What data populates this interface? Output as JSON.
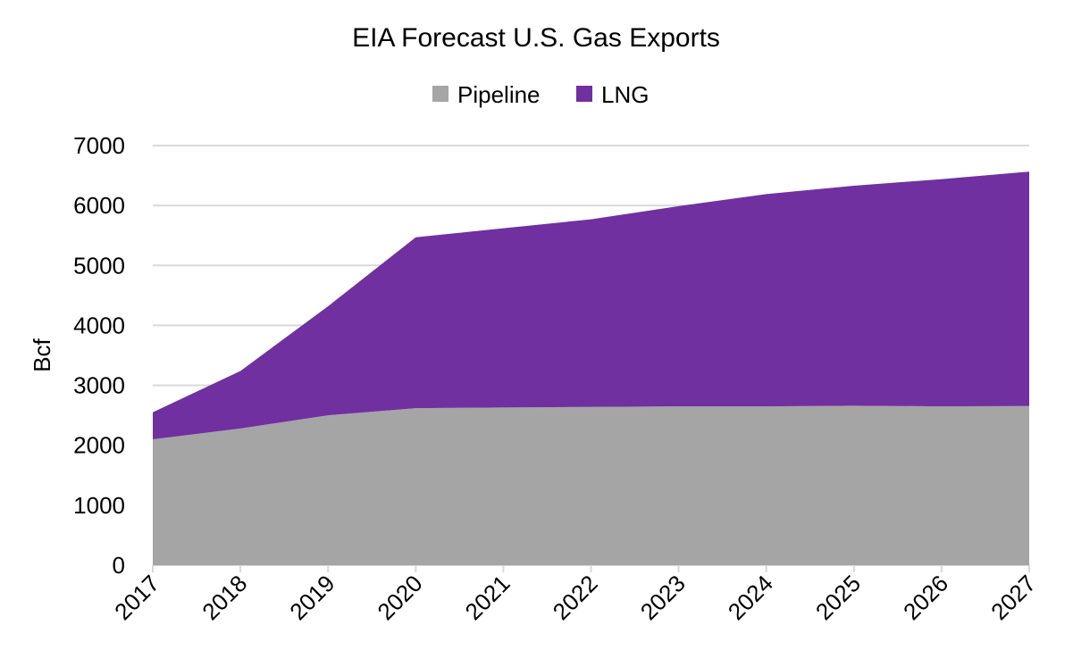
{
  "chart_data": {
    "type": "area",
    "stacked": true,
    "title": "EIA Forecast U.S. Gas Exports",
    "xlabel": "",
    "ylabel": "Bcf",
    "categories": [
      "2017",
      "2018",
      "2019",
      "2020",
      "2021",
      "2022",
      "2023",
      "2024",
      "2025",
      "2026",
      "2027"
    ],
    "series": [
      {
        "name": "Pipeline",
        "color": "#A5A5A5",
        "values": [
          2100,
          2280,
          2500,
          2620,
          2630,
          2640,
          2650,
          2650,
          2660,
          2650,
          2655
        ]
      },
      {
        "name": "LNG",
        "color": "#7030A0",
        "values": [
          450,
          960,
          1820,
          2850,
          2990,
          3130,
          3340,
          3540,
          3670,
          3790,
          3910
        ]
      }
    ],
    "ylim": [
      0,
      7000
    ],
    "yticks": [
      "0",
      "1000",
      "2000",
      "3000",
      "4000",
      "5000",
      "6000",
      "7000"
    ],
    "grid": true,
    "gridline_color": "#D9D9D9",
    "legend_position": "top"
  }
}
